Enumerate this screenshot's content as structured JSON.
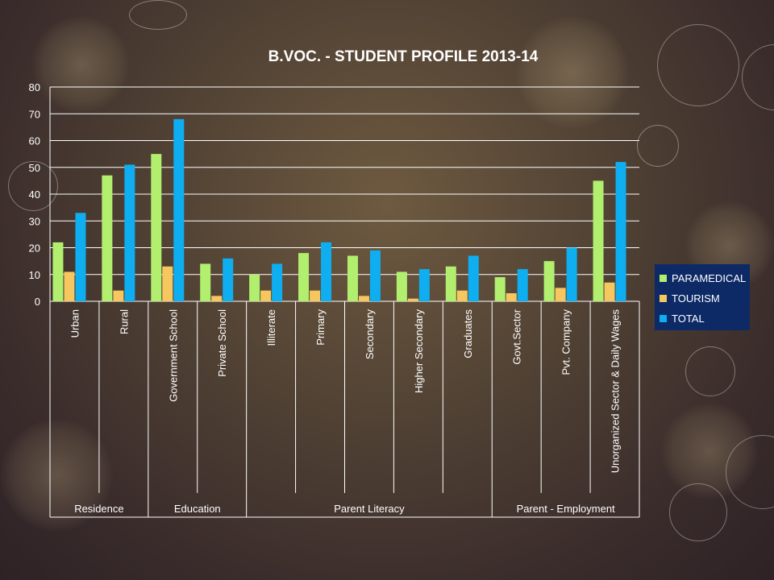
{
  "slide": {
    "background": "#4a3b31"
  },
  "chart_data": {
    "type": "bar",
    "title": "B.VOC. - STUDENT PROFILE 2013-14",
    "ylim": [
      0,
      80
    ],
    "yticks": [
      0,
      10,
      20,
      30,
      40,
      50,
      60,
      70,
      80
    ],
    "grid": true,
    "legend_position": "right",
    "categories": [
      "Urban",
      "Rural",
      "Government School",
      "Private School",
      "Illiterate",
      "Primary",
      "Secondary",
      "Higher Secondary",
      "Graduates",
      "Govt.Sector",
      "Pvt. Company",
      "Unorganized Sector & Daily Wages"
    ],
    "groups": [
      {
        "label": "Residence",
        "span": 2
      },
      {
        "label": "Education",
        "span": 2
      },
      {
        "label": "Parent Literacy",
        "span": 5
      },
      {
        "label": "Parent - Employment",
        "span": 3
      }
    ],
    "series": [
      {
        "name": "PARAMEDICAL",
        "color": "#b2ef6e",
        "values": [
          22,
          47,
          55,
          14,
          10,
          18,
          17,
          11,
          13,
          9,
          15,
          45
        ]
      },
      {
        "name": "TOURISM",
        "color": "#f6c75e",
        "values": [
          11,
          4,
          13,
          2,
          4,
          4,
          2,
          1,
          4,
          3,
          5,
          7
        ]
      },
      {
        "name": "TOTAL",
        "color": "#0eaef0",
        "values": [
          33,
          51,
          68,
          16,
          14,
          22,
          19,
          12,
          17,
          12,
          20,
          52
        ]
      }
    ]
  }
}
